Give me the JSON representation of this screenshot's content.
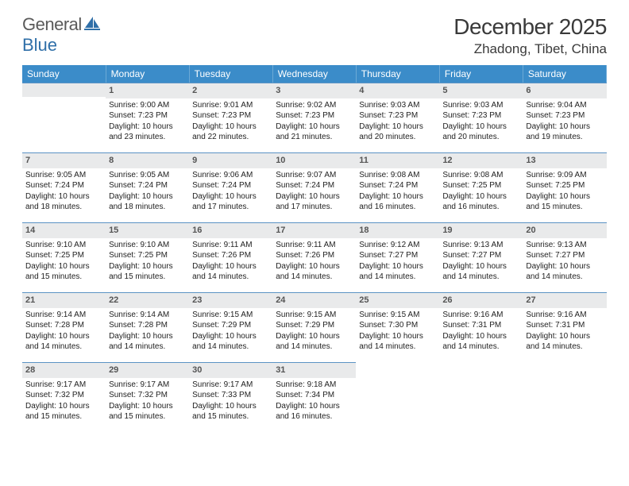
{
  "logo": {
    "text1": "General",
    "text2": "Blue",
    "color1": "#6a6a6a",
    "color2": "#2f6fa8"
  },
  "title": {
    "month": "December 2025",
    "location": "Zhadong, Tibet, China"
  },
  "headerColors": {
    "band": "#3b8cc9",
    "daynum_bg": "#e9eaeb",
    "daynum_border": "#5b93c4"
  },
  "dayNames": [
    "Sunday",
    "Monday",
    "Tuesday",
    "Wednesday",
    "Thursday",
    "Friday",
    "Saturday"
  ],
  "weeks": [
    [
      null,
      {
        "n": "1",
        "sr": "9:00 AM",
        "ss": "7:23 PM",
        "dl": "10 hours and 23 minutes."
      },
      {
        "n": "2",
        "sr": "9:01 AM",
        "ss": "7:23 PM",
        "dl": "10 hours and 22 minutes."
      },
      {
        "n": "3",
        "sr": "9:02 AM",
        "ss": "7:23 PM",
        "dl": "10 hours and 21 minutes."
      },
      {
        "n": "4",
        "sr": "9:03 AM",
        "ss": "7:23 PM",
        "dl": "10 hours and 20 minutes."
      },
      {
        "n": "5",
        "sr": "9:03 AM",
        "ss": "7:23 PM",
        "dl": "10 hours and 20 minutes."
      },
      {
        "n": "6",
        "sr": "9:04 AM",
        "ss": "7:23 PM",
        "dl": "10 hours and 19 minutes."
      }
    ],
    [
      {
        "n": "7",
        "sr": "9:05 AM",
        "ss": "7:24 PM",
        "dl": "10 hours and 18 minutes."
      },
      {
        "n": "8",
        "sr": "9:05 AM",
        "ss": "7:24 PM",
        "dl": "10 hours and 18 minutes."
      },
      {
        "n": "9",
        "sr": "9:06 AM",
        "ss": "7:24 PM",
        "dl": "10 hours and 17 minutes."
      },
      {
        "n": "10",
        "sr": "9:07 AM",
        "ss": "7:24 PM",
        "dl": "10 hours and 17 minutes."
      },
      {
        "n": "11",
        "sr": "9:08 AM",
        "ss": "7:24 PM",
        "dl": "10 hours and 16 minutes."
      },
      {
        "n": "12",
        "sr": "9:08 AM",
        "ss": "7:25 PM",
        "dl": "10 hours and 16 minutes."
      },
      {
        "n": "13",
        "sr": "9:09 AM",
        "ss": "7:25 PM",
        "dl": "10 hours and 15 minutes."
      }
    ],
    [
      {
        "n": "14",
        "sr": "9:10 AM",
        "ss": "7:25 PM",
        "dl": "10 hours and 15 minutes."
      },
      {
        "n": "15",
        "sr": "9:10 AM",
        "ss": "7:25 PM",
        "dl": "10 hours and 15 minutes."
      },
      {
        "n": "16",
        "sr": "9:11 AM",
        "ss": "7:26 PM",
        "dl": "10 hours and 14 minutes."
      },
      {
        "n": "17",
        "sr": "9:11 AM",
        "ss": "7:26 PM",
        "dl": "10 hours and 14 minutes."
      },
      {
        "n": "18",
        "sr": "9:12 AM",
        "ss": "7:27 PM",
        "dl": "10 hours and 14 minutes."
      },
      {
        "n": "19",
        "sr": "9:13 AM",
        "ss": "7:27 PM",
        "dl": "10 hours and 14 minutes."
      },
      {
        "n": "20",
        "sr": "9:13 AM",
        "ss": "7:27 PM",
        "dl": "10 hours and 14 minutes."
      }
    ],
    [
      {
        "n": "21",
        "sr": "9:14 AM",
        "ss": "7:28 PM",
        "dl": "10 hours and 14 minutes."
      },
      {
        "n": "22",
        "sr": "9:14 AM",
        "ss": "7:28 PM",
        "dl": "10 hours and 14 minutes."
      },
      {
        "n": "23",
        "sr": "9:15 AM",
        "ss": "7:29 PM",
        "dl": "10 hours and 14 minutes."
      },
      {
        "n": "24",
        "sr": "9:15 AM",
        "ss": "7:29 PM",
        "dl": "10 hours and 14 minutes."
      },
      {
        "n": "25",
        "sr": "9:15 AM",
        "ss": "7:30 PM",
        "dl": "10 hours and 14 minutes."
      },
      {
        "n": "26",
        "sr": "9:16 AM",
        "ss": "7:31 PM",
        "dl": "10 hours and 14 minutes."
      },
      {
        "n": "27",
        "sr": "9:16 AM",
        "ss": "7:31 PM",
        "dl": "10 hours and 14 minutes."
      }
    ],
    [
      {
        "n": "28",
        "sr": "9:17 AM",
        "ss": "7:32 PM",
        "dl": "10 hours and 15 minutes."
      },
      {
        "n": "29",
        "sr": "9:17 AM",
        "ss": "7:32 PM",
        "dl": "10 hours and 15 minutes."
      },
      {
        "n": "30",
        "sr": "9:17 AM",
        "ss": "7:33 PM",
        "dl": "10 hours and 15 minutes."
      },
      {
        "n": "31",
        "sr": "9:18 AM",
        "ss": "7:34 PM",
        "dl": "10 hours and 16 minutes."
      },
      null,
      null,
      null
    ]
  ],
  "labels": {
    "sunrise": "Sunrise:",
    "sunset": "Sunset:",
    "daylight": "Daylight:"
  }
}
